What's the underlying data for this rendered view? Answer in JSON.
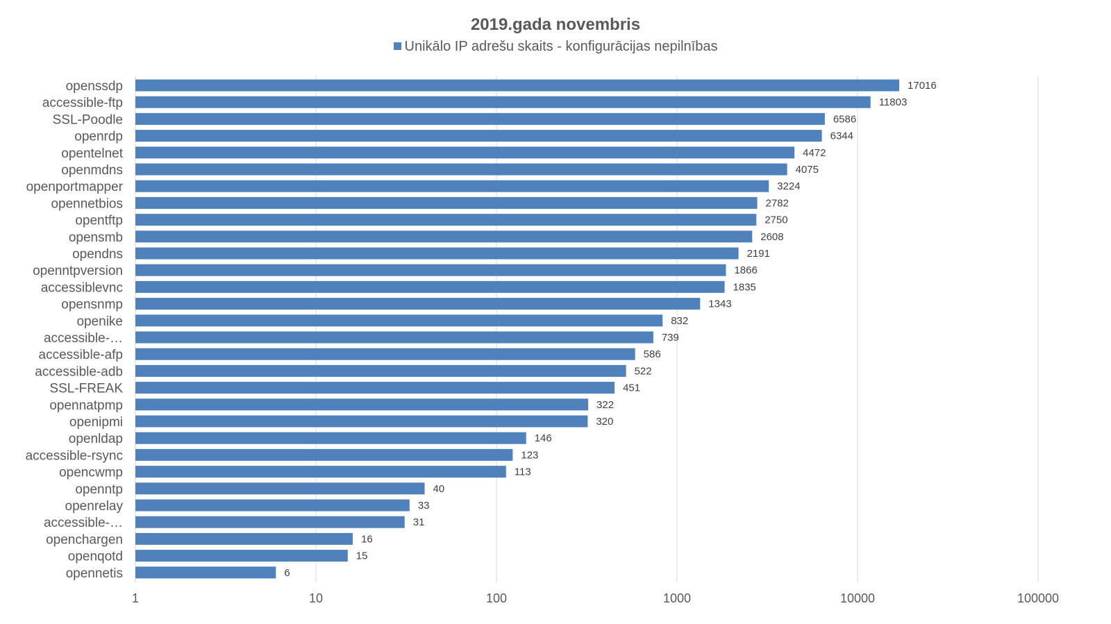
{
  "chart_data": {
    "type": "bar",
    "orientation": "horizontal",
    "title": "2019.gada novembris",
    "xscale": "log",
    "xlim": [
      1,
      100000
    ],
    "xticks": [
      "1",
      "10",
      "100",
      "1000",
      "10000",
      "100000"
    ],
    "grid": true,
    "legend_position": "top",
    "bar_color": "#4f81bd",
    "categories": [
      "openssdp",
      "accessible-ftp",
      "SSL-Poodle",
      "openrdp",
      "opentelnet",
      "openmdns",
      "openportmapper",
      "opennetbios",
      "opentftp",
      "opensmb",
      "opendns",
      "openntpversion",
      "accessiblevnc",
      "opensnmp",
      "openike",
      "accessible-…",
      "accessible-afp",
      "accessible-adb",
      "SSL-FREAK",
      "opennatpmp",
      "openipmi",
      "openldap",
      "accessible-rsync",
      "opencwmp",
      "openntp",
      "openrelay",
      "accessible-…",
      "openchargen",
      "openqotd",
      "opennetis"
    ],
    "series": [
      {
        "name": "Unikālo IP adrešu skaits  -  konfigurācijas nepilnības",
        "values": [
          17016,
          11803,
          6586,
          6344,
          4472,
          4075,
          3224,
          2782,
          2750,
          2608,
          2191,
          1866,
          1835,
          1343,
          832,
          739,
          586,
          522,
          451,
          322,
          320,
          146,
          123,
          113,
          40,
          33,
          31,
          16,
          15,
          6
        ]
      }
    ]
  }
}
